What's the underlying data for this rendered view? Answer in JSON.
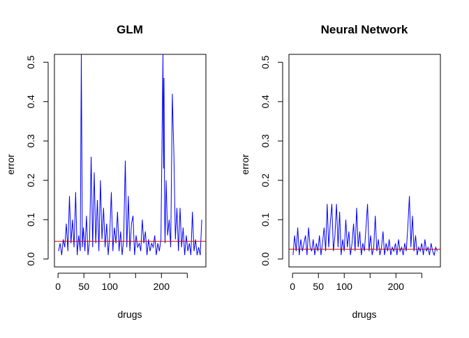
{
  "chart_data": [
    {
      "type": "line",
      "title": "GLM",
      "xlabel": "drugs",
      "ylabel": "error",
      "xlim": [
        -7,
        286
      ],
      "ylim": [
        -0.02,
        0.52
      ],
      "x_ticks": [
        0,
        50,
        100,
        150,
        200,
        250
      ],
      "x_tick_labels": [
        "0",
        "50",
        "100",
        "",
        "200",
        ""
      ],
      "y_ticks": [
        0.0,
        0.1,
        0.2,
        0.3,
        0.4,
        0.5
      ],
      "y_tick_labels": [
        "0.0",
        "0.1",
        "0.2",
        "0.3",
        "0.4",
        "0.5"
      ],
      "series": [
        {
          "color": "#0000ff",
          "x": [
            1,
            4,
            7,
            10,
            13,
            16,
            19,
            22,
            25,
            28,
            31,
            34,
            37,
            40,
            43,
            45,
            47,
            49,
            52,
            55,
            58,
            61,
            64,
            67,
            70,
            73,
            76,
            79,
            82,
            85,
            88,
            91,
            94,
            97,
            100,
            103,
            106,
            109,
            112,
            115,
            118,
            121,
            124,
            127,
            130,
            133,
            136,
            139,
            142,
            145,
            148,
            151,
            154,
            157,
            160,
            163,
            166,
            169,
            172,
            175,
            178,
            181,
            184,
            187,
            190,
            193,
            196,
            199,
            202,
            203,
            204,
            205,
            206,
            207,
            209,
            212,
            215,
            218,
            221,
            224,
            227,
            230,
            233,
            236,
            239,
            242,
            245,
            248,
            251,
            254,
            257,
            260,
            263,
            266,
            269,
            272,
            275,
            278
          ],
          "values": [
            0.02,
            0.04,
            0.01,
            0.05,
            0.03,
            0.09,
            0.02,
            0.16,
            0.04,
            0.1,
            0.03,
            0.17,
            0.01,
            0.06,
            0.02,
            0.52,
            0.03,
            0.08,
            0.02,
            0.11,
            0.01,
            0.05,
            0.26,
            0.03,
            0.22,
            0.04,
            0.15,
            0.02,
            0.2,
            0.05,
            0.13,
            0.03,
            0.09,
            0.01,
            0.06,
            0.17,
            0.02,
            0.08,
            0.04,
            0.12,
            0.02,
            0.07,
            0.01,
            0.05,
            0.25,
            0.03,
            0.16,
            0.02,
            0.09,
            0.11,
            0.01,
            0.06,
            0.03,
            0.04,
            0.02,
            0.1,
            0.04,
            0.07,
            0.01,
            0.05,
            0.02,
            0.04,
            0.03,
            0.06,
            0.01,
            0.04,
            0.02,
            0.05,
            0.41,
            0.52,
            0.23,
            0.46,
            0.12,
            0.04,
            0.2,
            0.06,
            0.1,
            0.03,
            0.42,
            0.27,
            0.05,
            0.13,
            0.02,
            0.13,
            0.03,
            0.08,
            0.01,
            0.06,
            0.02,
            0.04,
            0.01,
            0.12,
            0.02,
            0.05,
            0.01,
            0.03,
            0.01,
            0.1
          ]
        }
      ],
      "reference_line": {
        "y": 0.045,
        "color": "#cc0000"
      }
    },
    {
      "type": "line",
      "title": "Neural Network",
      "xlabel": "drugs",
      "ylabel": "error",
      "xlim": [
        -7,
        286
      ],
      "ylim": [
        -0.02,
        0.52
      ],
      "x_ticks": [
        0,
        50,
        100,
        150,
        200,
        250
      ],
      "x_tick_labels": [
        "0",
        "50",
        "100",
        "",
        "200",
        ""
      ],
      "y_ticks": [
        0.0,
        0.1,
        0.2,
        0.3,
        0.4,
        0.5
      ],
      "y_tick_labels": [
        "0.0",
        "0.1",
        "0.2",
        "0.3",
        "0.4",
        "0.5"
      ],
      "series": [
        {
          "color": "#0000ff",
          "x": [
            1,
            4,
            7,
            10,
            13,
            16,
            19,
            22,
            25,
            28,
            31,
            34,
            37,
            40,
            43,
            46,
            49,
            52,
            55,
            58,
            61,
            64,
            67,
            70,
            73,
            76,
            79,
            82,
            85,
            88,
            91,
            94,
            97,
            100,
            103,
            106,
            109,
            112,
            115,
            118,
            121,
            124,
            127,
            130,
            133,
            136,
            139,
            142,
            145,
            148,
            151,
            154,
            157,
            160,
            163,
            166,
            169,
            172,
            175,
            178,
            181,
            184,
            187,
            190,
            193,
            196,
            199,
            202,
            205,
            208,
            211,
            214,
            217,
            220,
            223,
            226,
            229,
            232,
            235,
            238,
            241,
            244,
            247,
            250,
            253,
            256,
            259,
            262,
            265,
            268,
            271,
            274,
            277,
            280
          ],
          "values": [
            0.01,
            0.06,
            0.02,
            0.08,
            0.01,
            0.05,
            0.02,
            0.04,
            0.06,
            0.01,
            0.08,
            0.03,
            0.02,
            0.05,
            0.01,
            0.04,
            0.02,
            0.06,
            0.01,
            0.04,
            0.08,
            0.02,
            0.14,
            0.03,
            0.09,
            0.14,
            0.02,
            0.06,
            0.14,
            0.03,
            0.12,
            0.01,
            0.05,
            0.02,
            0.1,
            0.03,
            0.07,
            0.01,
            0.04,
            0.09,
            0.02,
            0.13,
            0.03,
            0.07,
            0.01,
            0.04,
            0.02,
            0.08,
            0.14,
            0.02,
            0.06,
            0.01,
            0.03,
            0.11,
            0.02,
            0.05,
            0.01,
            0.03,
            0.07,
            0.01,
            0.04,
            0.02,
            0.05,
            0.01,
            0.03,
            0.02,
            0.04,
            0.01,
            0.05,
            0.02,
            0.03,
            0.01,
            0.04,
            0.02,
            0.08,
            0.16,
            0.03,
            0.11,
            0.02,
            0.06,
            0.01,
            0.03,
            0.02,
            0.04,
            0.01,
            0.05,
            0.02,
            0.03,
            0.01,
            0.04,
            0.02,
            0.01,
            0.03,
            0.02
          ]
        }
      ],
      "reference_line": {
        "y": 0.025,
        "color": "#cc0000"
      }
    }
  ]
}
